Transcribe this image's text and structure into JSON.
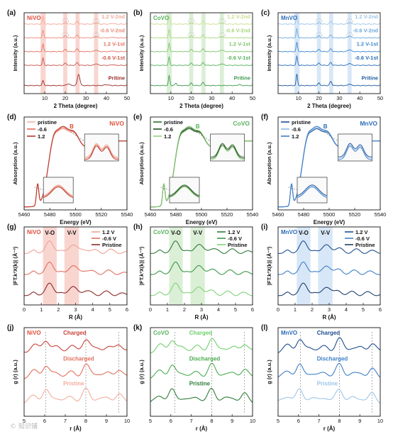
{
  "figure": {
    "watermark": "© 知识铺"
  },
  "chart_data": [
    {
      "id": "a",
      "panel_label": "(a)",
      "title": "NiVO",
      "type": "line",
      "kind": "xrd",
      "xlabel": "2 Theta (degree)",
      "ylabel": "Intensity (a.u.)",
      "xlim": [
        0,
        50
      ],
      "xticks": [
        10,
        20,
        30,
        40,
        50
      ],
      "ylim": [
        0,
        10
      ],
      "yticks": [],
      "colors": [
        "#f4a899",
        "#ec8a79",
        "#e4715f",
        "#c9564a",
        "#9c2e2c"
      ],
      "highlights": [
        [
          8,
          10.5
        ],
        [
          19,
          21
        ],
        [
          25,
          27
        ],
        [
          34,
          36
        ]
      ],
      "series": [
        {
          "name": "1.2 V-2nd",
          "offset": 8.6,
          "peaks": [
            [
              9.2,
              0.9,
              0.35
            ],
            [
              20,
              0.25,
              0.6
            ],
            [
              25.8,
              0.35,
              0.5
            ],
            [
              35,
              0.2,
              0.7
            ],
            [
              43,
              0.1,
              0.6
            ]
          ]
        },
        {
          "name": "-0.6 V-2nd",
          "offset": 6.9,
          "peaks": [
            [
              9.2,
              0.9,
              0.35
            ],
            [
              20,
              0.25,
              0.6
            ],
            [
              25.8,
              0.35,
              0.5
            ],
            [
              35,
              0.2,
              0.7
            ],
            [
              43,
              0.1,
              0.6
            ]
          ]
        },
        {
          "name": "1.2 V-1st",
          "offset": 5.2,
          "peaks": [
            [
              9.2,
              0.9,
              0.35
            ],
            [
              20,
              0.25,
              0.6
            ],
            [
              25.8,
              0.35,
              0.5
            ],
            [
              35,
              0.2,
              0.7
            ],
            [
              43,
              0.1,
              0.6
            ]
          ]
        },
        {
          "name": "-0.6 V-1st",
          "offset": 3.5,
          "peaks": [
            [
              9.2,
              0.9,
              0.35
            ],
            [
              20,
              0.25,
              0.6
            ],
            [
              25.8,
              0.35,
              0.5
            ],
            [
              35,
              0.2,
              0.7
            ],
            [
              43,
              0.1,
              0.6
            ]
          ]
        },
        {
          "name": "Pritine",
          "offset": 1.0,
          "peaks": [
            [
              9.2,
              0.6,
              0.4
            ],
            [
              21.5,
              0.2,
              0.8
            ],
            [
              26.5,
              1.4,
              0.6
            ],
            [
              40,
              0.1,
              1.0
            ]
          ]
        }
      ],
      "annotations": []
    },
    {
      "id": "b",
      "panel_label": "(b)",
      "title": "CoVO",
      "type": "line",
      "kind": "xrd",
      "xlabel": "2 Theta (degree)",
      "ylabel": "Intensity (a.u.)",
      "xlim": [
        0,
        50
      ],
      "xticks": [
        10,
        20,
        30,
        40,
        50
      ],
      "ylim": [
        0,
        10
      ],
      "yticks": [],
      "colors": [
        "#c9df8e",
        "#a8d67a",
        "#7ec66a",
        "#56b25c",
        "#3d9a4e"
      ],
      "highlights": [
        [
          8,
          10.5
        ],
        [
          19,
          21
        ],
        [
          25,
          27
        ],
        [
          34,
          36
        ]
      ],
      "series": [
        {
          "name": "1.2 V-2nd",
          "offset": 8.6,
          "peaks": [
            [
              9.2,
              1.0,
              0.35
            ],
            [
              20,
              0.25,
              0.6
            ],
            [
              25.8,
              0.35,
              0.5
            ],
            [
              35,
              0.2,
              0.7
            ]
          ]
        },
        {
          "name": "-0.6 V-2nd",
          "offset": 6.9,
          "peaks": [
            [
              9.2,
              1.0,
              0.35
            ],
            [
              20,
              0.25,
              0.6
            ],
            [
              25.8,
              0.35,
              0.5
            ],
            [
              35,
              0.2,
              0.7
            ]
          ]
        },
        {
          "name": "1.2 V-1st",
          "offset": 5.2,
          "peaks": [
            [
              9.2,
              1.0,
              0.35
            ],
            [
              20,
              0.25,
              0.6
            ],
            [
              25.8,
              0.35,
              0.5
            ],
            [
              35,
              0.2,
              0.7
            ]
          ]
        },
        {
          "name": "-0.6 V-1st",
          "offset": 3.5,
          "peaks": [
            [
              9.2,
              1.0,
              0.35
            ],
            [
              20,
              0.25,
              0.6
            ],
            [
              25.8,
              0.35,
              0.5
            ],
            [
              35,
              0.2,
              0.7
            ]
          ]
        },
        {
          "name": "Pritine",
          "offset": 1.0,
          "peaks": [
            [
              9.2,
              1.2,
              0.35
            ],
            [
              12.5,
              0.3,
              0.4
            ],
            [
              20,
              0.3,
              0.5
            ],
            [
              25.8,
              0.4,
              0.5
            ],
            [
              43.5,
              0.15,
              0.5
            ]
          ]
        }
      ],
      "annotations": []
    },
    {
      "id": "c",
      "panel_label": "(c)",
      "title": "MnVO",
      "type": "line",
      "kind": "xrd",
      "xlabel": "2 Theta (degree)",
      "ylabel": "Intensity (a.u.)",
      "xlim": [
        0,
        50
      ],
      "xticks": [
        10,
        20,
        30,
        40,
        50
      ],
      "ylim": [
        0,
        10
      ],
      "yticks": [],
      "colors": [
        "#9cc5ea",
        "#6aa8de",
        "#3d88cf",
        "#2a6db8",
        "#1f5a9f"
      ],
      "highlights": [
        [
          8,
          10.5
        ],
        [
          19,
          21
        ],
        [
          25,
          27
        ],
        [
          34,
          36
        ]
      ],
      "series": [
        {
          "name": "1.2 V-2nd",
          "offset": 8.6,
          "peaks": [
            [
              9.2,
              1.1,
              0.35
            ],
            [
              20,
              0.25,
              0.6
            ],
            [
              25.8,
              0.35,
              0.5
            ],
            [
              35,
              0.25,
              0.7
            ]
          ]
        },
        {
          "name": "-0.6 V-2nd",
          "offset": 6.9,
          "peaks": [
            [
              9.2,
              1.1,
              0.35
            ],
            [
              20,
              0.25,
              0.6
            ],
            [
              25.8,
              0.35,
              0.5
            ],
            [
              35,
              0.25,
              0.7
            ]
          ]
        },
        {
          "name": "1.2 V-1st",
          "offset": 5.2,
          "peaks": [
            [
              9.2,
              1.1,
              0.35
            ],
            [
              20,
              0.25,
              0.6
            ],
            [
              25.8,
              0.35,
              0.5
            ],
            [
              35,
              0.25,
              0.7
            ]
          ]
        },
        {
          "name": "-0.6 V-1st",
          "offset": 3.5,
          "peaks": [
            [
              9.2,
              1.1,
              0.35
            ],
            [
              20,
              0.25,
              0.6
            ],
            [
              25.8,
              0.35,
              0.5
            ],
            [
              35,
              0.25,
              0.7
            ]
          ]
        },
        {
          "name": "Pritine",
          "offset": 1.0,
          "peaks": [
            [
              9.2,
              1.4,
              0.35
            ],
            [
              20,
              0.3,
              0.5
            ],
            [
              25.8,
              0.5,
              0.5
            ],
            [
              35,
              0.2,
              0.6
            ]
          ]
        }
      ],
      "annotations": []
    },
    {
      "id": "d",
      "panel_label": "(d)",
      "title": "NiVO",
      "type": "line",
      "kind": "xanes",
      "xlabel": "Energy (eV)",
      "ylabel": "Absorption (a.u.)",
      "xlim": [
        5460,
        5540
      ],
      "xticks": [
        5460,
        5480,
        5500,
        5520,
        5540
      ],
      "ylim": [
        0,
        1.55
      ],
      "yticks": [],
      "colors": [
        "#f2b4a3",
        "#e46b55",
        "#b83a2e"
      ],
      "highlights": [],
      "series": [
        {
          "name": "pristine"
        },
        {
          "name": "-0.6"
        },
        {
          "name": "1.2"
        }
      ],
      "annotations": [
        {
          "text": "B",
          "x": 5497,
          "y": 1.36
        }
      ]
    },
    {
      "id": "e",
      "panel_label": "(e)",
      "title": "CoVO",
      "type": "line",
      "kind": "xanes",
      "xlabel": "Energy (eV)",
      "ylabel": "Absorption (a.u.)",
      "xlim": [
        5460,
        5540
      ],
      "xticks": [
        5460,
        5480,
        5500,
        5520,
        5540
      ],
      "ylim": [
        0,
        1.55
      ],
      "yticks": [],
      "colors": [
        "#2f6f2f",
        "#1f4f1f",
        "#8fd07a"
      ],
      "highlights": [],
      "series": [
        {
          "name": "pristine"
        },
        {
          "name": "-0.6"
        },
        {
          "name": "1.2"
        }
      ],
      "annotations": [
        {
          "text": "B",
          "x": 5497,
          "y": 1.36
        }
      ]
    },
    {
      "id": "f",
      "panel_label": "(f)",
      "title": "MnVO",
      "type": "line",
      "kind": "xanes",
      "xlabel": "Energy (eV)",
      "ylabel": "Absorption (a.u.)",
      "xlim": [
        5460,
        5540
      ],
      "xticks": [
        5460,
        5480,
        5500,
        5520,
        5540
      ],
      "ylim": [
        0,
        1.55
      ],
      "yticks": [],
      "colors": [
        "#1f4f8f",
        "#8ab8e6",
        "#3f7fc8"
      ],
      "highlights": [],
      "series": [
        {
          "name": "pristine"
        },
        {
          "name": "-0.6"
        },
        {
          "name": "1.2"
        }
      ],
      "annotations": [
        {
          "text": "B",
          "x": 5497,
          "y": 1.36
        }
      ]
    },
    {
      "id": "g",
      "panel_label": "(g)",
      "title": "NiVO",
      "type": "line",
      "kind": "exafs",
      "xlabel": "R (Å)",
      "ylabel": "|FT.k³X(k)| (Å⁻³)",
      "xlim": [
        0,
        6
      ],
      "xticks": [
        0,
        1,
        2,
        3,
        4,
        5,
        6
      ],
      "ylim": [
        0,
        10
      ],
      "yticks": [],
      "colors": [
        "#f0a193",
        "#e0705c",
        "#8b2a27"
      ],
      "highlights": [
        [
          1.1,
          1.9
        ],
        [
          2.35,
          3.2
        ]
      ],
      "series": [
        {
          "name": "1.2 V",
          "offset": 6.6
        },
        {
          "name": "-0.6 V",
          "offset": 3.9
        },
        {
          "name": "Pristine",
          "offset": 1.2
        }
      ],
      "annotations": [
        {
          "text": "V-O",
          "x": 1.5,
          "y": 9.0
        },
        {
          "text": "V-V",
          "x": 2.78,
          "y": 9.0
        }
      ]
    },
    {
      "id": "h",
      "panel_label": "(h)",
      "title": "CoVO",
      "type": "line",
      "kind": "exafs",
      "xlabel": "R (Å)",
      "ylabel": "|FT.k³X(k)| (Å⁻³)",
      "xlim": [
        0,
        6
      ],
      "xticks": [
        0,
        1,
        2,
        3,
        4,
        5,
        6
      ],
      "ylim": [
        0,
        10
      ],
      "yticks": [],
      "colors": [
        "#2f7a3a",
        "#3a9848",
        "#7fd27a"
      ],
      "highlights": [
        [
          1.1,
          1.9
        ],
        [
          2.35,
          3.2
        ]
      ],
      "series": [
        {
          "name": "1.2 V",
          "offset": 6.6
        },
        {
          "name": "-0.6 V",
          "offset": 3.9
        },
        {
          "name": "Pristine",
          "offset": 1.2
        }
      ],
      "annotations": [
        {
          "text": "V-O",
          "x": 1.5,
          "y": 9.0
        },
        {
          "text": "V-V",
          "x": 2.78,
          "y": 9.0
        }
      ]
    },
    {
      "id": "i",
      "panel_label": "(i)",
      "title": "MnVO",
      "type": "line",
      "kind": "exafs",
      "xlabel": "R (Å)",
      "ylabel": "|FT.k³X(k)| (Å⁻³)",
      "xlim": [
        0,
        6
      ],
      "xticks": [
        0,
        1,
        2,
        3,
        4,
        5,
        6
      ],
      "ylim": [
        0,
        10
      ],
      "yticks": [],
      "colors": [
        "#1f4f8f",
        "#3f7fc8",
        "#1e3f6f"
      ],
      "highlights": [
        [
          1.1,
          1.9
        ],
        [
          2.35,
          3.2
        ]
      ],
      "series": [
        {
          "name": "1.2 V",
          "offset": 6.6
        },
        {
          "name": "-0.6 V",
          "offset": 3.9
        },
        {
          "name": "Pristine",
          "offset": 1.2
        }
      ],
      "annotations": [
        {
          "text": "V-O",
          "x": 1.5,
          "y": 9.0
        },
        {
          "text": "V-V",
          "x": 2.78,
          "y": 9.0
        }
      ]
    },
    {
      "id": "j",
      "panel_label": "(j)",
      "title": "NiVO",
      "type": "line",
      "kind": "pdf",
      "xlabel": "r (Å)",
      "ylabel": "g (r) (a.u.)",
      "xlim": [
        5,
        10
      ],
      "xticks": [
        5,
        6,
        7,
        8,
        9,
        10
      ],
      "ylim": [
        0,
        10
      ],
      "yticks": [],
      "colors": [
        "#c8433a",
        "#e0705c",
        "#f2ad9d"
      ],
      "highlights": [],
      "guides": [
        6.05,
        8.0,
        9.6
      ],
      "series": [
        {
          "name": "Charged",
          "offset": 7.3
        },
        {
          "name": "Discharged",
          "offset": 4.4
        },
        {
          "name": "Pristine",
          "offset": 1.6
        }
      ],
      "annotations": []
    },
    {
      "id": "k",
      "panel_label": "(k)",
      "title": "CoVO",
      "type": "line",
      "kind": "pdf",
      "xlabel": "r (Å)",
      "ylabel": "g (r) (a.u.)",
      "xlim": [
        5,
        10
      ],
      "xticks": [
        5,
        6,
        7,
        8,
        9,
        10
      ],
      "ylim": [
        0,
        10
      ],
      "yticks": [],
      "colors": [
        "#6fcf6a",
        "#4aaa4f",
        "#2e7d38"
      ],
      "highlights": [],
      "guides": [
        6.2,
        8.0,
        9.6
      ],
      "series": [
        {
          "name": "Charged",
          "offset": 7.3
        },
        {
          "name": "Discharged",
          "offset": 4.4
        },
        {
          "name": "Pristine",
          "offset": 1.6
        }
      ],
      "annotations": []
    },
    {
      "id": "l",
      "panel_label": "(l)",
      "title": "MnVO",
      "type": "line",
      "kind": "pdf",
      "xlabel": "r (Å)",
      "ylabel": "g (r) (a.u.)",
      "xlim": [
        5,
        10
      ],
      "xticks": [
        5,
        6,
        7,
        8,
        9,
        10
      ],
      "ylim": [
        0,
        10
      ],
      "yticks": [],
      "colors": [
        "#1f4f8f",
        "#3f7fc8",
        "#9cc5ea"
      ],
      "highlights": [],
      "guides": [
        6.1,
        8.0,
        9.6
      ],
      "series": [
        {
          "name": "Charged",
          "offset": 7.3
        },
        {
          "name": "Discharged",
          "offset": 4.4
        },
        {
          "name": "Pristine",
          "offset": 1.6
        }
      ],
      "annotations": []
    }
  ]
}
